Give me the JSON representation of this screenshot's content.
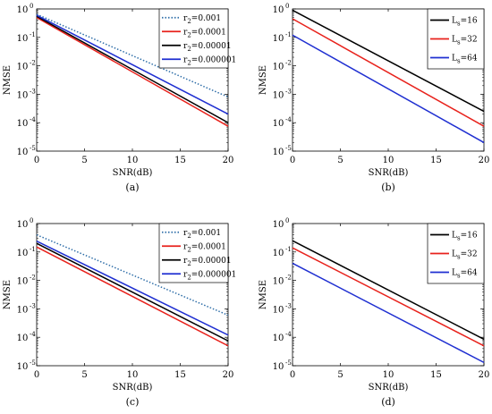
{
  "chart_data": [
    {
      "type": "line",
      "panel_label": "(a)",
      "xlabel": "SNR(dB)",
      "ylabel": "NMSE",
      "xlim": [
        0,
        20
      ],
      "ylim": [
        1e-05,
        1
      ],
      "yscale": "log",
      "xticks": [
        "0",
        "5",
        "10",
        "15",
        "20"
      ],
      "yticks": [
        "10",
        "10",
        "10",
        "10",
        "10",
        "10"
      ],
      "ytick_exponents": [
        "-5",
        "-4",
        "-3",
        "-2",
        "-1",
        "0"
      ],
      "grid": false,
      "legend_position": "top-right",
      "x": [
        0,
        20
      ],
      "series": [
        {
          "name": "r",
          "subscript": "2",
          "suffix": "=0.001",
          "values": [
            0.65,
            0.0008
          ],
          "color": "#2f6ea8",
          "dash": "dotted"
        },
        {
          "name": "r",
          "subscript": "2",
          "suffix": "=0.0001",
          "values": [
            0.5,
            7.5e-05
          ],
          "color": "#e8221c",
          "dash": "solid"
        },
        {
          "name": "r",
          "subscript": "2",
          "suffix": "=0.00001",
          "values": [
            0.55,
            0.0001
          ],
          "color": "#000000",
          "dash": "solid"
        },
        {
          "name": "r",
          "subscript": "2",
          "suffix": "=0.000001",
          "values": [
            0.6,
            0.0002
          ],
          "color": "#1f2fd1",
          "dash": "solid"
        }
      ]
    },
    {
      "type": "line",
      "panel_label": "(b)",
      "xlabel": "SNR(dB)",
      "ylabel": "NMSE",
      "xlim": [
        0,
        20
      ],
      "ylim": [
        1e-05,
        1
      ],
      "yscale": "log",
      "xticks": [
        "0",
        "5",
        "10",
        "15",
        "20"
      ],
      "yticks": [
        "10",
        "10",
        "10",
        "10",
        "10",
        "10"
      ],
      "ytick_exponents": [
        "-5",
        "-4",
        "-3",
        "-2",
        "-1",
        "0"
      ],
      "grid": false,
      "legend_position": "top-right",
      "x": [
        0,
        20
      ],
      "series": [
        {
          "name": "L",
          "subscript": "s",
          "suffix": "=16",
          "values": [
            0.9,
            0.00025
          ],
          "color": "#000000",
          "dash": "solid"
        },
        {
          "name": "L",
          "subscript": "s",
          "suffix": "=32",
          "values": [
            0.45,
            7.5e-05
          ],
          "color": "#e8221c",
          "dash": "solid"
        },
        {
          "name": "L",
          "subscript": "s",
          "suffix": "=64",
          "values": [
            0.12,
            2e-05
          ],
          "color": "#1f2fd1",
          "dash": "solid"
        }
      ]
    },
    {
      "type": "line",
      "panel_label": "(c)",
      "xlabel": "SNR(dB)",
      "ylabel": "NMSE",
      "xlim": [
        0,
        20
      ],
      "ylim": [
        1e-05,
        1
      ],
      "yscale": "log",
      "xticks": [
        "0",
        "5",
        "10",
        "15",
        "20"
      ],
      "yticks": [
        "10",
        "10",
        "10",
        "10",
        "10",
        "10"
      ],
      "ytick_exponents": [
        "-5",
        "-4",
        "-3",
        "-2",
        "-1",
        "0"
      ],
      "grid": false,
      "legend_position": "top-right",
      "x": [
        0,
        20
      ],
      "series": [
        {
          "name": "r",
          "subscript": "2",
          "suffix": "=0.001",
          "values": [
            0.4,
            0.0006
          ],
          "color": "#2f6ea8",
          "dash": "dotted"
        },
        {
          "name": "r",
          "subscript": "2",
          "suffix": "=0.0001",
          "values": [
            0.15,
            5e-05
          ],
          "color": "#e8221c",
          "dash": "solid"
        },
        {
          "name": "r",
          "subscript": "2",
          "suffix": "=0.00001",
          "values": [
            0.2,
            7.5e-05
          ],
          "color": "#000000",
          "dash": "solid"
        },
        {
          "name": "r",
          "subscript": "2",
          "suffix": "=0.000001",
          "values": [
            0.24,
            0.00012
          ],
          "color": "#1f2fd1",
          "dash": "solid"
        }
      ]
    },
    {
      "type": "line",
      "panel_label": "(d)",
      "xlabel": "SNR(dB)",
      "ylabel": "NMSE",
      "xlim": [
        0,
        20
      ],
      "ylim": [
        1e-05,
        1
      ],
      "yscale": "log",
      "xticks": [
        "0",
        "5",
        "10",
        "15",
        "20"
      ],
      "yticks": [
        "10",
        "10",
        "10",
        "10",
        "10",
        "10"
      ],
      "ytick_exponents": [
        "-5",
        "-4",
        "-3",
        "-2",
        "-1",
        "0"
      ],
      "grid": false,
      "legend_position": "top-right",
      "x": [
        0,
        20
      ],
      "series": [
        {
          "name": "L",
          "subscript": "s",
          "suffix": "=16",
          "values": [
            0.25,
            8.5e-05
          ],
          "color": "#000000",
          "dash": "solid"
        },
        {
          "name": "L",
          "subscript": "s",
          "suffix": "=32",
          "values": [
            0.14,
            5e-05
          ],
          "color": "#e8221c",
          "dash": "solid"
        },
        {
          "name": "L",
          "subscript": "s",
          "suffix": "=64",
          "values": [
            0.04,
            1.3e-05
          ],
          "color": "#1f2fd1",
          "dash": "solid"
        }
      ]
    }
  ]
}
